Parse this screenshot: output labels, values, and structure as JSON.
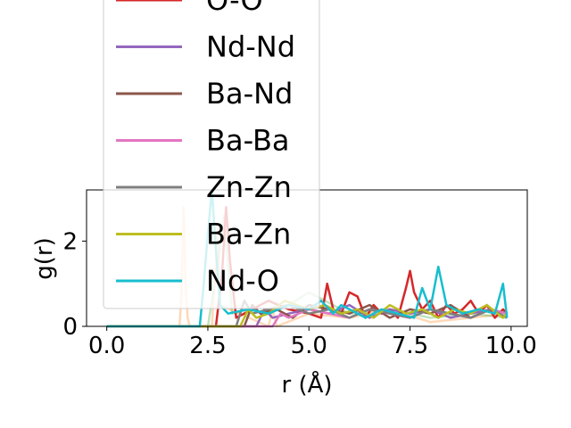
{
  "chart_data": {
    "type": "line",
    "title": "",
    "xlabel": "r (Å)",
    "ylabel": "g(r)",
    "xlim": [
      -0.5,
      10.4
    ],
    "ylim": [
      0,
      3.2
    ],
    "xticks": [
      {
        "value": 0.0,
        "label": "0.0"
      },
      {
        "value": 2.5,
        "label": "2.5"
      },
      {
        "value": 5.0,
        "label": "5.0"
      },
      {
        "value": 7.5,
        "label": "7.5"
      },
      {
        "value": 10.0,
        "label": "10.0"
      }
    ],
    "yticks": [
      {
        "value": 0,
        "label": "0"
      },
      {
        "value": 2,
        "label": "2"
      }
    ],
    "grid": false,
    "legend_placement": "upper-left, overflowing above plot",
    "series": [
      {
        "name": "",
        "color": "#ff7f0e",
        "alpha": 0.3,
        "x": [
          0,
          1.8,
          1.85,
          1.9,
          1.95,
          2.0,
          2.05,
          2.6,
          2.7,
          2.75,
          2.8,
          4.0,
          4.1,
          4.2,
          5.0,
          6.0,
          7.0,
          8.0,
          9.0,
          9.9
        ],
        "y": [
          0,
          0,
          0.8,
          2.8,
          1.0,
          0.2,
          0,
          0,
          1.5,
          2.4,
          0.5,
          0,
          0.4,
          0,
          0.3,
          0.2,
          0.4,
          0.1,
          0.2,
          0.3
        ]
      },
      {
        "name": "",
        "color": "#2ca02c",
        "alpha": 0.3,
        "x": [
          0,
          2.3,
          2.5,
          2.7,
          2.9,
          3.1,
          3.5,
          4.0,
          4.5,
          5.0,
          6.0,
          7.0,
          8.0,
          9.0,
          9.9
        ],
        "y": [
          0,
          0,
          0,
          1.2,
          2.6,
          0.3,
          0.4,
          0.3,
          0.5,
          0.8,
          0.3,
          0.4,
          0.2,
          0.3,
          0.2
        ]
      },
      {
        "name": "O-O",
        "color": "#d62728",
        "alpha": 1,
        "x": [
          0,
          2.7,
          2.85,
          2.95,
          3.05,
          3.2,
          4.0,
          4.5,
          5.0,
          5.3,
          5.45,
          5.6,
          5.8,
          6.0,
          6.2,
          6.4,
          6.6,
          6.8,
          7.0,
          7.2,
          7.4,
          7.5,
          7.6,
          7.8,
          8.0,
          8.2,
          8.4,
          8.6,
          8.8,
          9.0,
          9.2,
          9.4,
          9.6,
          9.8,
          9.9
        ],
        "y": [
          0,
          0,
          1.2,
          2.8,
          1.5,
          0.2,
          0.6,
          0.4,
          0.3,
          0.2,
          1.0,
          0.4,
          0.3,
          0.8,
          0.7,
          0.2,
          0.5,
          0.3,
          0.4,
          0.2,
          0.9,
          1.3,
          0.8,
          0.4,
          0.6,
          0.2,
          0.5,
          0.3,
          0.4,
          0.6,
          0.3,
          0.5,
          0.2,
          0.4,
          0.3
        ]
      },
      {
        "name": "Nd-Nd",
        "color": "#9467bd",
        "alpha": 1,
        "x": [
          0,
          3.7,
          3.9,
          4.1,
          4.5,
          5.0,
          5.5,
          6.0,
          6.5,
          7.0,
          7.5,
          8.0,
          8.5,
          9.0,
          9.5,
          9.9
        ],
        "y": [
          0,
          0,
          0.4,
          0.2,
          0.3,
          0.4,
          0.3,
          0.5,
          0.2,
          0.4,
          0.3,
          0.4,
          0.2,
          0.3,
          0.4,
          0.2
        ]
      },
      {
        "name": "Ba-Nd",
        "color": "#8c564b",
        "alpha": 1,
        "x": [
          0,
          3.4,
          3.6,
          3.8,
          4.2,
          4.6,
          5.0,
          5.5,
          6.0,
          6.5,
          7.0,
          7.5,
          8.0,
          8.5,
          9.0,
          9.5,
          9.9
        ],
        "y": [
          0,
          0,
          0.5,
          0.3,
          0.4,
          0.2,
          0.5,
          0.4,
          0.3,
          0.5,
          0.2,
          0.4,
          0.3,
          0.5,
          0.2,
          0.4,
          0.3
        ]
      },
      {
        "name": "Ba-Ba",
        "color": "#e377c2",
        "alpha": 1,
        "x": [
          0,
          4.1,
          4.3,
          4.5,
          5.0,
          5.5,
          6.0,
          6.5,
          7.0,
          7.5,
          8.0,
          8.5,
          9.0,
          9.5,
          9.9
        ],
        "y": [
          0,
          0,
          0.3,
          0.2,
          0.4,
          0.3,
          0.2,
          0.4,
          0.3,
          0.2,
          0.4,
          0.3,
          0.2,
          0.4,
          0.3
        ]
      },
      {
        "name": "Zn-Zn",
        "color": "#7f7f7f",
        "alpha": 1,
        "x": [
          0,
          3.2,
          3.4,
          3.6,
          4.0,
          4.5,
          5.0,
          5.5,
          6.0,
          6.5,
          7.0,
          7.5,
          8.0,
          8.5,
          9.0,
          9.5,
          9.9
        ],
        "y": [
          0,
          0,
          0.6,
          0.3,
          0.4,
          0.5,
          0.3,
          0.4,
          0.2,
          0.4,
          0.3,
          0.2,
          0.4,
          0.3,
          0.2,
          0.4,
          0.2
        ]
      },
      {
        "name": "Ba-Zn",
        "color": "#bcbd22",
        "alpha": 1,
        "x": [
          0,
          3.3,
          3.5,
          3.7,
          4.0,
          4.4,
          5.0,
          5.4,
          5.8,
          6.2,
          6.6,
          7.0,
          7.4,
          7.8,
          8.2,
          8.6,
          9.0,
          9.4,
          9.8,
          9.9
        ],
        "y": [
          0,
          0,
          0.4,
          0.2,
          0.3,
          0.6,
          0.4,
          0.5,
          0.3,
          0.4,
          0.2,
          0.5,
          0.3,
          0.4,
          0.2,
          0.4,
          0.3,
          0.5,
          0.2,
          0.3
        ]
      },
      {
        "name": "Nd-O",
        "color": "#17becf",
        "alpha": 1,
        "x": [
          0,
          2.3,
          2.4,
          2.5,
          2.6,
          2.7,
          2.8,
          3.0,
          3.5,
          4.0,
          4.5,
          5.0,
          5.3,
          5.6,
          5.8,
          6.0,
          6.4,
          6.8,
          7.2,
          7.6,
          7.8,
          8.0,
          8.2,
          8.4,
          8.8,
          9.2,
          9.6,
          9.8,
          9.9
        ],
        "y": [
          0,
          0,
          1.0,
          2.2,
          3.2,
          1.8,
          0.5,
          0.3,
          0.4,
          0.3,
          0.5,
          0.4,
          0.6,
          0.3,
          0.5,
          0.4,
          0.2,
          0.4,
          0.3,
          0.2,
          0.9,
          0.4,
          1.4,
          0.5,
          0.3,
          0.4,
          0.3,
          1.0,
          0.2
        ]
      }
    ]
  }
}
